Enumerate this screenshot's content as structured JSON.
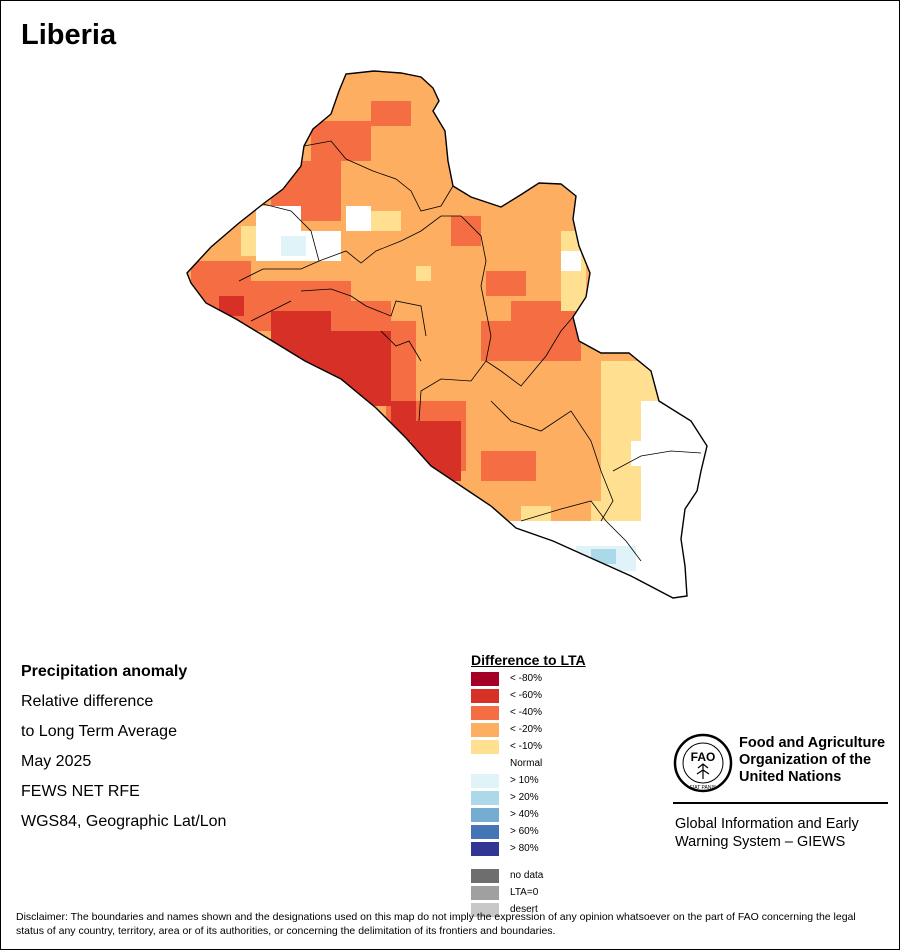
{
  "title": "Liberia",
  "info": {
    "heading": "Precipitation anomaly",
    "line1": "Relative difference",
    "line2": "to Long Term Average",
    "period": "May 2025",
    "source": "FEWS NET RFE",
    "projection": "WGS84, Geographic Lat/Lon"
  },
  "legend": {
    "title": "Difference to LTA",
    "items": [
      {
        "label": "< -80%",
        "color": "#a50026"
      },
      {
        "label": "< -60%",
        "color": "#d73027"
      },
      {
        "label": "< -40%",
        "color": "#f46d43"
      },
      {
        "label": "< -20%",
        "color": "#fdae61"
      },
      {
        "label": "< -10%",
        "color": "#fee090"
      },
      {
        "label": "Normal",
        "color": "#ffffff"
      },
      {
        "label": "> 10%",
        "color": "#e0f3f8"
      },
      {
        "label": "> 20%",
        "color": "#abd9e9"
      },
      {
        "label": "> 40%",
        "color": "#74add1"
      },
      {
        "label": "> 60%",
        "color": "#4575b4"
      },
      {
        "label": "> 80%",
        "color": "#313695"
      }
    ],
    "extra": [
      {
        "label": "no data",
        "color": "#6e6e6e"
      },
      {
        "label": "LTA=0",
        "color": "#a0a0a0"
      },
      {
        "label": "desert",
        "color": "#c8c8c8"
      }
    ]
  },
  "fao": {
    "name_line1": "Food and Agriculture",
    "name_line2": "Organization of the",
    "name_line3": "United Nations",
    "logo_text": "FAO",
    "motto": "FIAT PANIS",
    "giews_line1": "Global Information and Early",
    "giews_line2": "Warning System – GIEWS"
  },
  "disclaimer": "Disclaimer: The boundaries and names shown and the designations used on this map do not imply the expression of any opinion whatsoever on the part of FAO concerning the legal status of any country, territory, area or of its authorities, or concerning the delimitation of its frontiers and boundaries.",
  "map_colors": {
    "drier_60": "#d73027",
    "drier_40": "#f46d43",
    "drier_20": "#fdae61",
    "drier_10": "#fee090",
    "normal": "#ffffff",
    "wetter_10": "#e0f3f8",
    "wetter_20": "#abd9e9"
  }
}
